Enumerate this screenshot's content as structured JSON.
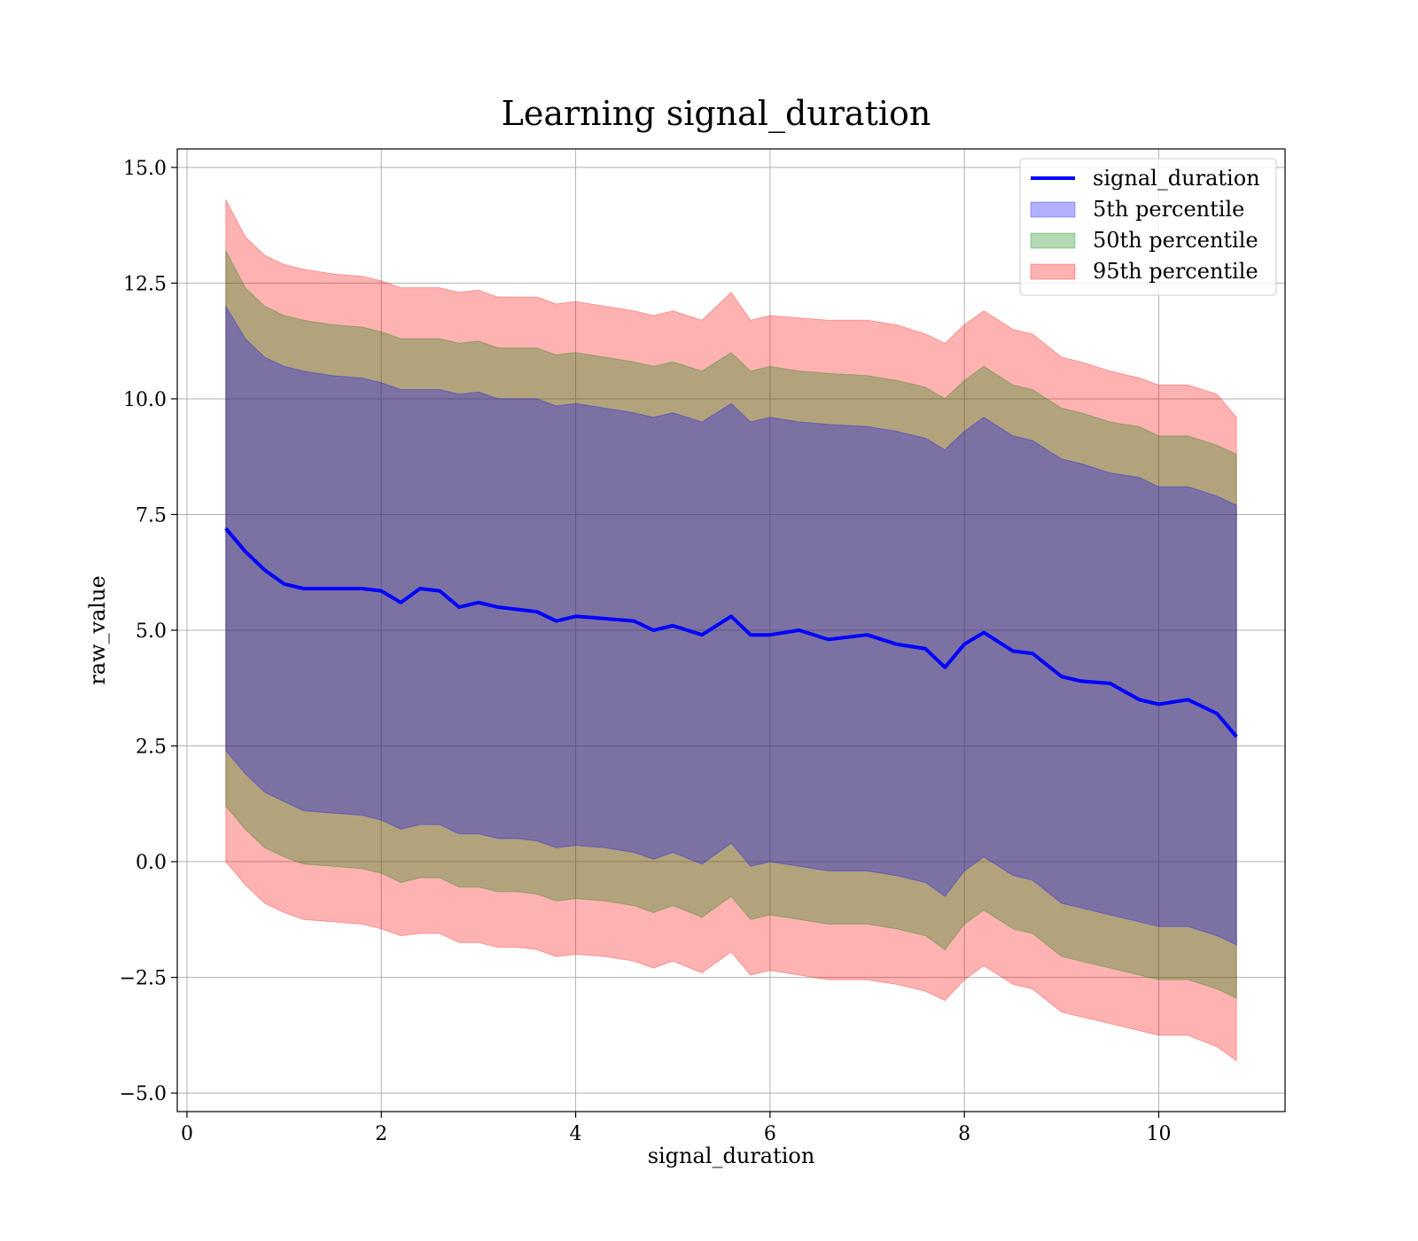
{
  "chart_data": {
    "type": "area",
    "title": "Learning signal_duration",
    "xlabel": "signal_duration",
    "ylabel": "raw_value",
    "xlim": [
      -0.1,
      11.3
    ],
    "ylim": [
      -5.4,
      15.4
    ],
    "grid": true,
    "legend_position": "top-right",
    "x_ticks": [
      0,
      2,
      4,
      6,
      8,
      10
    ],
    "x_tick_labels": [
      "0",
      "2",
      "4",
      "6",
      "8",
      "10"
    ],
    "y_ticks": [
      -5.0,
      -2.5,
      0.0,
      2.5,
      5.0,
      7.5,
      10.0,
      12.5,
      15.0
    ],
    "y_tick_labels": [
      "−5.0",
      "−2.5",
      "0.0",
      "2.5",
      "5.0",
      "7.5",
      "10.0",
      "12.5",
      "15.0"
    ],
    "legend": [
      {
        "label": "signal_duration",
        "kind": "line",
        "color": "#0000ff"
      },
      {
        "label": "5th percentile",
        "kind": "patch",
        "color": "#0000ff"
      },
      {
        "label": "50th percentile",
        "kind": "patch",
        "color": "#008000"
      },
      {
        "label": "95th percentile",
        "kind": "patch",
        "color": "#ff0000"
      }
    ],
    "x": [
      0.4,
      0.6,
      0.8,
      1.0,
      1.2,
      1.5,
      1.8,
      2.0,
      2.2,
      2.4,
      2.6,
      2.8,
      3.0,
      3.2,
      3.4,
      3.6,
      3.8,
      4.0,
      4.3,
      4.6,
      4.8,
      5.0,
      5.3,
      5.6,
      5.8,
      6.0,
      6.3,
      6.6,
      7.0,
      7.3,
      7.6,
      7.8,
      8.0,
      8.2,
      8.5,
      8.7,
      9.0,
      9.2,
      9.5,
      9.8,
      10.0,
      10.3,
      10.6,
      10.8
    ],
    "series": [
      {
        "name": "signal_duration",
        "role": "line",
        "color": "#0000ff",
        "values": [
          7.2,
          6.7,
          6.3,
          6.0,
          5.9,
          5.9,
          5.9,
          5.85,
          5.6,
          5.9,
          5.85,
          5.5,
          5.6,
          5.5,
          5.45,
          5.4,
          5.2,
          5.3,
          5.25,
          5.2,
          5.0,
          5.1,
          4.9,
          5.3,
          4.9,
          4.9,
          5.0,
          4.8,
          4.9,
          4.7,
          4.6,
          4.2,
          4.7,
          4.95,
          4.55,
          4.5,
          4.0,
          3.9,
          3.85,
          3.5,
          3.4,
          3.5,
          3.2,
          2.7
        ]
      },
      {
        "name": "5th percentile",
        "role": "band",
        "color": "#0000ff",
        "upper": [
          12.0,
          11.3,
          10.9,
          10.7,
          10.6,
          10.5,
          10.45,
          10.35,
          10.2,
          10.2,
          10.2,
          10.1,
          10.15,
          10.0,
          10.0,
          10.0,
          9.85,
          9.9,
          9.8,
          9.7,
          9.6,
          9.7,
          9.5,
          9.9,
          9.5,
          9.6,
          9.5,
          9.45,
          9.4,
          9.3,
          9.15,
          8.9,
          9.3,
          9.6,
          9.2,
          9.1,
          8.7,
          8.6,
          8.4,
          8.3,
          8.1,
          8.1,
          7.9,
          7.7
        ],
        "lower": [
          2.4,
          1.9,
          1.5,
          1.3,
          1.1,
          1.05,
          1.0,
          0.9,
          0.7,
          0.8,
          0.8,
          0.6,
          0.6,
          0.5,
          0.5,
          0.45,
          0.3,
          0.35,
          0.3,
          0.2,
          0.05,
          0.2,
          -0.05,
          0.4,
          -0.1,
          0.0,
          -0.1,
          -0.2,
          -0.2,
          -0.3,
          -0.45,
          -0.75,
          -0.2,
          0.1,
          -0.3,
          -0.4,
          -0.9,
          -1.0,
          -1.15,
          -1.3,
          -1.4,
          -1.4,
          -1.6,
          -1.8
        ]
      },
      {
        "name": "50th percentile",
        "role": "band",
        "color": "#008000",
        "upper": [
          13.2,
          12.4,
          12.0,
          11.8,
          11.7,
          11.6,
          11.55,
          11.45,
          11.3,
          11.3,
          11.3,
          11.2,
          11.25,
          11.1,
          11.1,
          11.1,
          10.95,
          11.0,
          10.9,
          10.8,
          10.7,
          10.8,
          10.6,
          11.0,
          10.6,
          10.7,
          10.6,
          10.55,
          10.5,
          10.4,
          10.25,
          10.0,
          10.4,
          10.7,
          10.3,
          10.2,
          9.8,
          9.7,
          9.5,
          9.4,
          9.2,
          9.2,
          9.0,
          8.8
        ],
        "lower": [
          1.2,
          0.7,
          0.3,
          0.1,
          -0.05,
          -0.1,
          -0.15,
          -0.25,
          -0.45,
          -0.35,
          -0.35,
          -0.55,
          -0.55,
          -0.65,
          -0.65,
          -0.7,
          -0.85,
          -0.8,
          -0.85,
          -0.95,
          -1.1,
          -0.95,
          -1.2,
          -0.75,
          -1.25,
          -1.15,
          -1.25,
          -1.35,
          -1.35,
          -1.45,
          -1.6,
          -1.9,
          -1.35,
          -1.05,
          -1.45,
          -1.55,
          -2.05,
          -2.15,
          -2.3,
          -2.45,
          -2.55,
          -2.55,
          -2.75,
          -2.95
        ]
      },
      {
        "name": "95th percentile",
        "role": "band",
        "color": "#ff0000",
        "upper": [
          14.3,
          13.5,
          13.1,
          12.9,
          12.8,
          12.7,
          12.65,
          12.55,
          12.4,
          12.4,
          12.4,
          12.3,
          12.35,
          12.2,
          12.2,
          12.2,
          12.05,
          12.1,
          12.0,
          11.9,
          11.8,
          11.9,
          11.7,
          12.3,
          11.7,
          11.8,
          11.75,
          11.7,
          11.7,
          11.6,
          11.4,
          11.2,
          11.6,
          11.9,
          11.5,
          11.4,
          10.9,
          10.8,
          10.6,
          10.45,
          10.3,
          10.3,
          10.1,
          9.6
        ],
        "lower": [
          0.0,
          -0.5,
          -0.9,
          -1.1,
          -1.25,
          -1.3,
          -1.35,
          -1.45,
          -1.6,
          -1.55,
          -1.55,
          -1.75,
          -1.75,
          -1.85,
          -1.85,
          -1.9,
          -2.05,
          -2.0,
          -2.05,
          -2.15,
          -2.3,
          -2.15,
          -2.4,
          -1.95,
          -2.45,
          -2.35,
          -2.45,
          -2.55,
          -2.55,
          -2.65,
          -2.8,
          -3.0,
          -2.55,
          -2.25,
          -2.65,
          -2.75,
          -3.25,
          -3.35,
          -3.5,
          -3.65,
          -3.75,
          -3.75,
          -4.0,
          -4.3
        ]
      }
    ]
  }
}
